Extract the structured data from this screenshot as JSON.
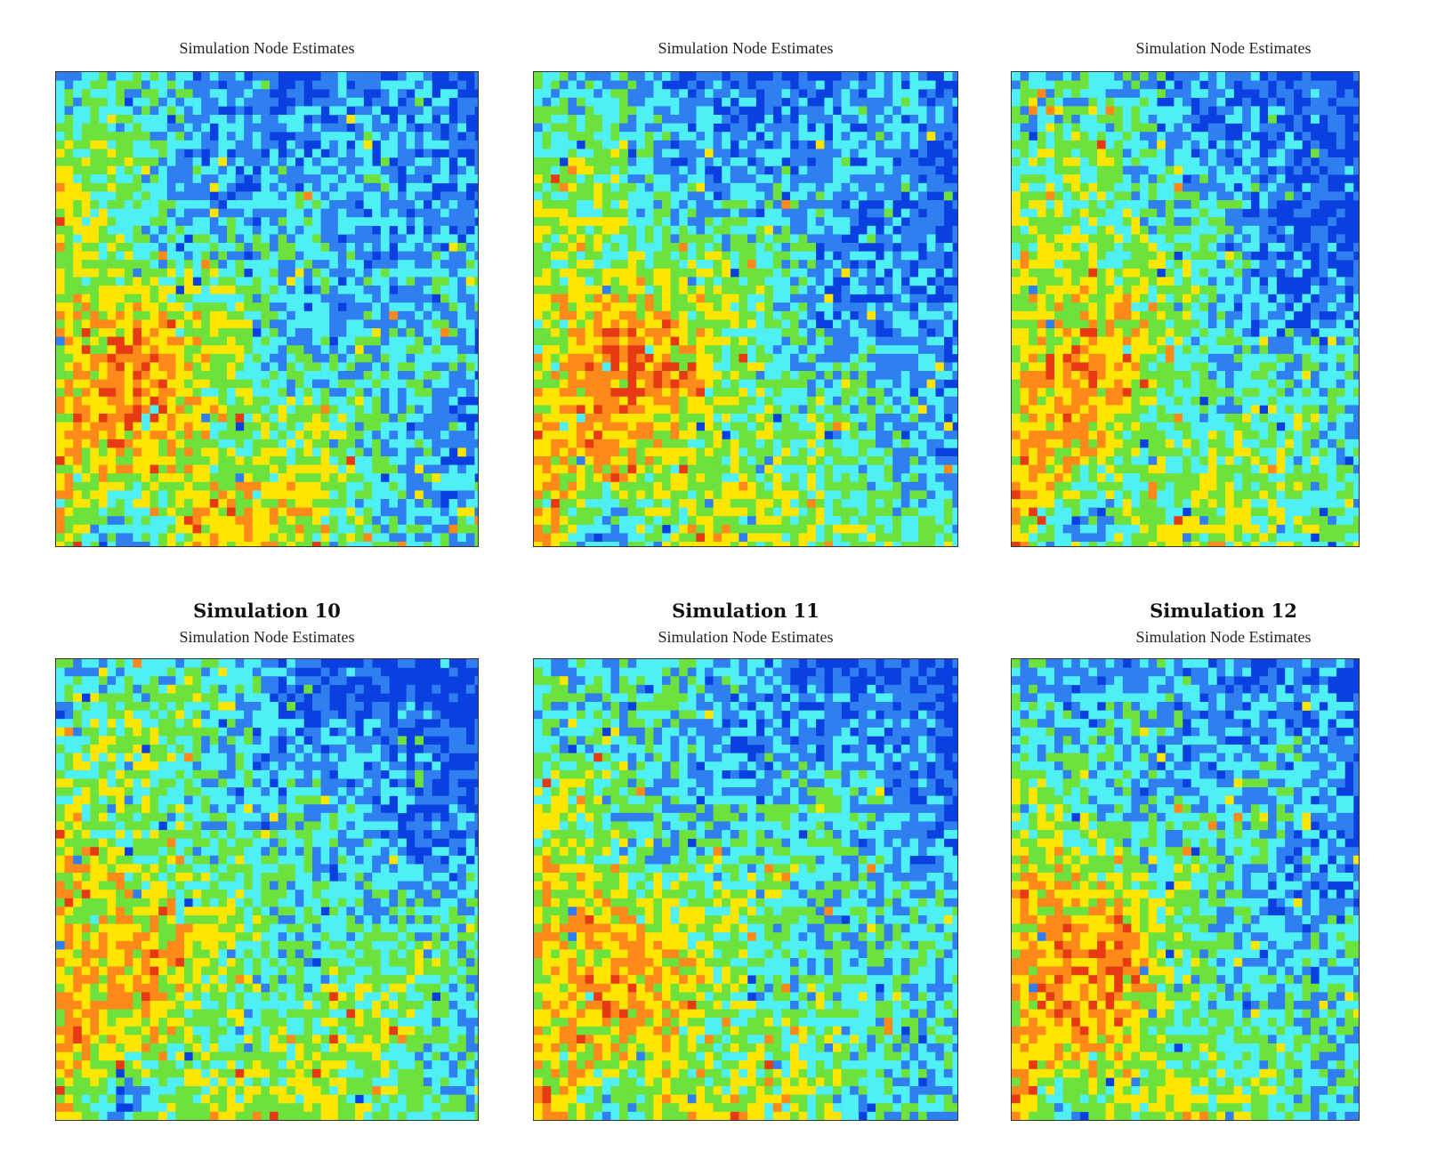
{
  "chart_data": [
    {
      "type": "heatmap",
      "title": "",
      "subtitle": "Simulation Node Estimates",
      "seed": 7
    },
    {
      "type": "heatmap",
      "title": "",
      "subtitle": "Simulation Node Estimates",
      "seed": 8
    },
    {
      "type": "heatmap",
      "title": "",
      "subtitle": "Simulation Node Estimates",
      "seed": 9
    },
    {
      "type": "heatmap",
      "title": "Simulation 10",
      "subtitle": "Simulation Node Estimates",
      "seed": 10
    },
    {
      "type": "heatmap",
      "title": "Simulation 11",
      "subtitle": "Simulation Node Estimates",
      "seed": 11
    },
    {
      "type": "heatmap",
      "title": "Simulation 12",
      "subtitle": "Simulation Node Estimates",
      "seed": 12
    }
  ],
  "colormap": [
    "#0a3fe0",
    "#2f7ff0",
    "#4ef0f6",
    "#6ee23c",
    "#ffe600",
    "#ff8a1a",
    "#e83a12"
  ]
}
